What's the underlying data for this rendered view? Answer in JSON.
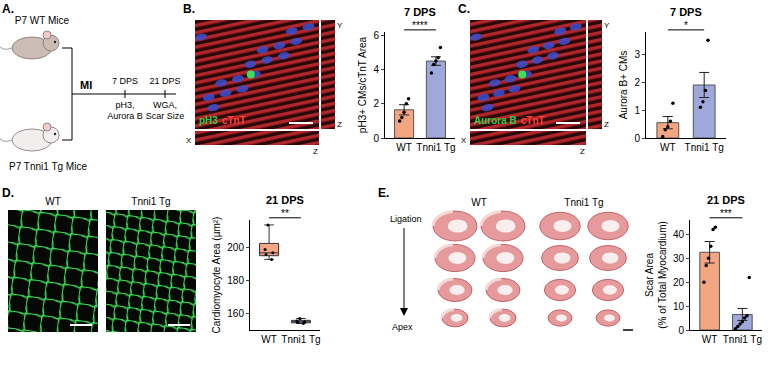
{
  "schematic": {
    "panel_label": "A.",
    "groups": [
      "P7 WT Mice",
      "P7 Tnni1 Tg Mice"
    ],
    "procedure": "MI",
    "timepoints": [
      {
        "label": "7 DPS",
        "assays": [
          "pH3,",
          "Aurora B"
        ]
      },
      {
        "label": "21 DPS",
        "assays": [
          "WGA,",
          "Scar Size"
        ]
      }
    ]
  },
  "chart_data": [
    {
      "type": "bar",
      "panel_label": "B.",
      "title": "7 DPS",
      "y_label": [
        "pH3+ CMs/cTnT Area"
      ],
      "categories": [
        "WT",
        "Tnni1 Tg"
      ],
      "values": [
        1.65,
        4.5
      ],
      "errors": [
        0.3,
        0.25
      ],
      "points": [
        [
          1.0,
          1.2,
          1.5,
          2.0,
          2.3
        ],
        [
          3.8,
          4.3,
          4.5,
          4.7,
          5.3
        ]
      ],
      "colors": [
        "#f4a582",
        "#9fa8da"
      ],
      "ylim": [
        0,
        6.2
      ],
      "yticks": [
        0,
        2,
        4,
        6
      ],
      "significance": "****",
      "image": {
        "stains": [
          {
            "text": "pH3",
            "color": "#2ecc40"
          },
          {
            "text": "cTnT",
            "color": "#ff4136"
          }
        ],
        "axis_letters": [
          "X",
          "Y",
          "Z",
          "Z"
        ]
      }
    },
    {
      "type": "bar",
      "panel_label": "C.",
      "title": "7 DPS",
      "y_label": [
        "Aurora B+ CMs"
      ],
      "categories": [
        "WT",
        "Tnni1 Tg"
      ],
      "values": [
        0.55,
        1.9
      ],
      "errors": [
        0.22,
        0.45
      ],
      "points": [
        [
          0.05,
          0.3,
          0.4,
          0.6,
          1.25
        ],
        [
          1.1,
          1.3,
          1.7,
          3.5
        ]
      ],
      "colors": [
        "#f4a582",
        "#9fa8da"
      ],
      "ylim": [
        0,
        3.8
      ],
      "yticks": [
        0,
        1,
        2,
        3
      ],
      "significance": "*",
      "image": {
        "stains": [
          {
            "text": "Aurora B",
            "color": "#2ecc40"
          },
          {
            "text": "cTnT",
            "color": "#ff4136"
          }
        ],
        "axis_letters": [
          "X",
          "Y",
          "Z",
          "Z"
        ]
      }
    },
    {
      "type": "box",
      "panel_label": "D.",
      "title": "21 DPS",
      "y_label": [
        "Cardiomyocyte Area (µm²)"
      ],
      "categories": [
        "WT",
        "Tnni1 Tg"
      ],
      "points": [
        [
          193,
          196,
          197,
          199,
          214
        ],
        [
          154,
          154.5,
          155,
          155.5,
          157
        ]
      ],
      "colors": [
        "#f4a582",
        "#9fa8da"
      ],
      "ylim": [
        150,
        217
      ],
      "yticks": [
        160,
        180,
        200
      ],
      "significance": "**",
      "image": {
        "labels": [
          "WT",
          "Tnni1 Tg"
        ]
      }
    },
    {
      "type": "bar",
      "panel_label": "E.",
      "title": "21 DPS",
      "y_label": [
        "Scar Area",
        "(% of Total Myocardium)"
      ],
      "categories": [
        "WT",
        "Tnni1 Tg"
      ],
      "values": [
        32.5,
        6.5
      ],
      "errors": [
        4.5,
        2.5
      ],
      "points": [
        [
          20,
          27,
          30,
          35,
          42,
          43
        ],
        [
          0.5,
          1.5,
          2.5,
          3.5,
          5,
          6,
          22
        ]
      ],
      "colors": [
        "#f4a582",
        "#9fa8da"
      ],
      "ylim": [
        0,
        46
      ],
      "yticks": [
        0,
        10,
        20,
        30,
        40
      ],
      "significance": "***",
      "image": {
        "labels": [
          "WT",
          "Tnni1 Tg"
        ],
        "top": "Ligation",
        "bottom": "Apex"
      }
    }
  ]
}
